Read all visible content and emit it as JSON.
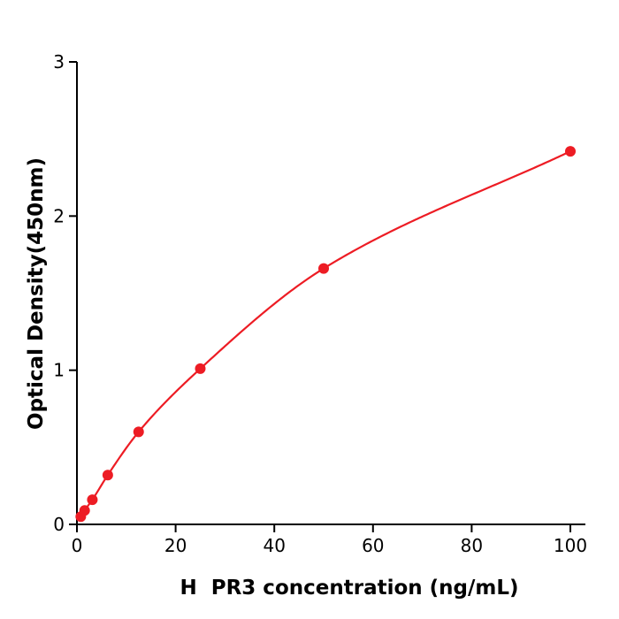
{
  "page": {
    "background": "#ffffff"
  },
  "chart_data": {
    "type": "line",
    "title": "",
    "xlabel": "H  PR3 concentration (ng/mL)",
    "ylabel": "Optical Density(450nm)",
    "x": [
      0.78,
      1.56,
      3.125,
      6.25,
      12.5,
      25,
      50,
      100
    ],
    "y": [
      0.05,
      0.09,
      0.16,
      0.32,
      0.6,
      1.01,
      1.66,
      2.42
    ],
    "xlim": [
      0,
      100
    ],
    "ylim": [
      0,
      3
    ],
    "xticks": [
      0,
      20,
      40,
      60,
      80,
      100
    ],
    "yticks": [
      0,
      1,
      2,
      3
    ],
    "grid": false,
    "legend": "none",
    "line_color": "#ed1c24",
    "marker_color": "#ed1c24",
    "marker_style": "circle",
    "axis_color": "#000000"
  }
}
